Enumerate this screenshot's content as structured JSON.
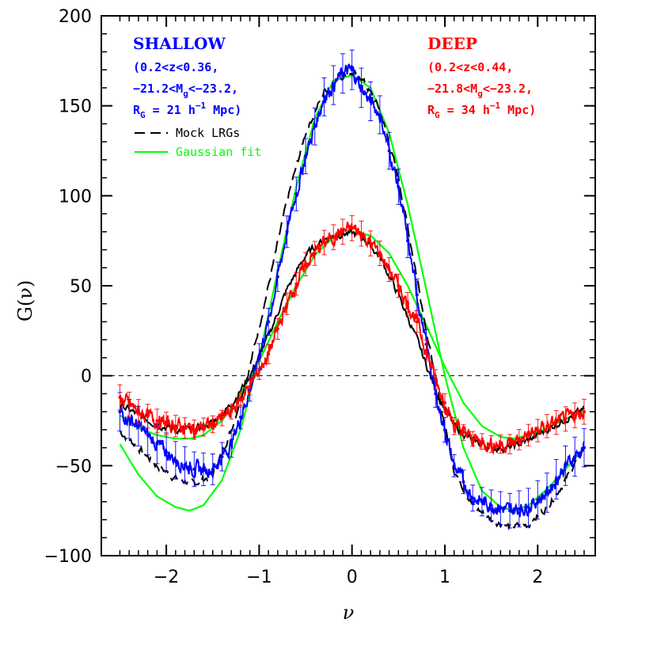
{
  "chart_data": {
    "type": "line",
    "xlabel": "ν",
    "ylabel": "G(ν)",
    "xlim": [
      -2.7,
      2.62
    ],
    "ylim": [
      -100,
      200
    ],
    "x_ticks": [
      -2,
      -1,
      0,
      1,
      2
    ],
    "x_tick_labels": [
      "−2",
      "−1",
      "0",
      "1",
      "2"
    ],
    "y_ticks": [
      -100,
      -50,
      0,
      50,
      100,
      150,
      200
    ],
    "y_tick_labels": [
      "−100",
      "−50",
      "0",
      "50",
      "100",
      "150",
      "200"
    ],
    "zero_line": true,
    "colors": {
      "shallow": "#0000ff",
      "deep": "#ff0000",
      "mock": "#000000",
      "gaussian": "#00ff00"
    },
    "annotations": {
      "shallow": {
        "title": "SHALLOW",
        "line1": "(0.2<z<0.36,",
        "line2_pre": "−21.2<M",
        "line2_sub": "g",
        "line2_post": "<−23.2,",
        "line3_pre": "R",
        "line3_sub": "G",
        "line3_mid": " = 21 h",
        "line3_sup": "−1",
        "line3_post": " Mpc)"
      },
      "deep": {
        "title": "DEEP",
        "line1": "(0.2<z<0.44,",
        "line2_pre": "−21.8<M",
        "line2_sub": "g",
        "line2_post": "<−23.2,",
        "line3_pre": "R",
        "line3_sub": "G",
        "line3_mid": " = 34 h",
        "line3_sup": "−1",
        "line3_post": " Mpc)"
      }
    },
    "legend": [
      {
        "label": "Mock LRGs",
        "style": "dashed",
        "color": "#000000"
      },
      {
        "label": "Gaussian fit",
        "style": "solid",
        "color": "#00ff00"
      }
    ],
    "series": [
      {
        "name": "SHALLOW",
        "color": "#0000ff",
        "style": "noisy",
        "x": [
          -2.5,
          -2.3,
          -2.1,
          -1.9,
          -1.7,
          -1.5,
          -1.3,
          -1.1,
          -0.9,
          -0.7,
          -0.5,
          -0.3,
          -0.1,
          0.0,
          0.1,
          0.3,
          0.5,
          0.7,
          0.9,
          1.1,
          1.3,
          1.5,
          1.7,
          1.9,
          2.1,
          2.3,
          2.5
        ],
        "y": [
          -20,
          -28,
          -38,
          -47,
          -52,
          -52,
          -38,
          -8,
          30,
          80,
          122,
          155,
          168,
          170,
          160,
          145,
          105,
          45,
          -10,
          -50,
          -68,
          -72,
          -75,
          -73,
          -65,
          -50,
          -40
        ]
      },
      {
        "name": "DEEP",
        "color": "#ff0000",
        "style": "noisy",
        "x": [
          -2.5,
          -2.3,
          -2.1,
          -1.9,
          -1.7,
          -1.5,
          -1.3,
          -1.1,
          -0.9,
          -0.7,
          -0.5,
          -0.3,
          -0.1,
          0.0,
          0.1,
          0.3,
          0.5,
          0.7,
          0.9,
          1.1,
          1.3,
          1.5,
          1.7,
          1.9,
          2.1,
          2.3,
          2.5
        ],
        "y": [
          -12,
          -20,
          -25,
          -28,
          -30,
          -27,
          -20,
          -6,
          12,
          40,
          62,
          74,
          80,
          82,
          79,
          68,
          50,
          30,
          -2,
          -28,
          -35,
          -38,
          -38,
          -33,
          -28,
          -24,
          -20
        ]
      },
      {
        "name": "Mock shallow",
        "color": "#000000",
        "style": "dashed",
        "x": [
          -2.5,
          -2.3,
          -2.1,
          -1.9,
          -1.7,
          -1.5,
          -1.3,
          -1.1,
          -0.9,
          -0.7,
          -0.5,
          -0.3,
          -0.1,
          0.0,
          0.1,
          0.3,
          0.5,
          0.7,
          0.9,
          1.1,
          1.3,
          1.5,
          1.7,
          1.9,
          2.1,
          2.3,
          2.5
        ],
        "y": [
          -31,
          -40,
          -50,
          -57,
          -60,
          -55,
          -30,
          5,
          50,
          97,
          135,
          158,
          167,
          168,
          166,
          148,
          110,
          55,
          -3,
          -52,
          -72,
          -80,
          -84,
          -83,
          -73,
          -58,
          -40
        ]
      },
      {
        "name": "Mock deep",
        "color": "#000000",
        "style": "solid",
        "x": [
          -2.5,
          -2.3,
          -2.1,
          -1.9,
          -1.7,
          -1.5,
          -1.3,
          -1.1,
          -0.9,
          -0.7,
          -0.5,
          -0.3,
          -0.1,
          0.0,
          0.1,
          0.3,
          0.5,
          0.7,
          0.9,
          1.1,
          1.3,
          1.5,
          1.7,
          1.9,
          2.1,
          2.3,
          2.5
        ],
        "y": [
          -16,
          -22,
          -27,
          -30,
          -30,
          -26,
          -16,
          0,
          22,
          48,
          67,
          76,
          79,
          79,
          78,
          66,
          45,
          20,
          -8,
          -28,
          -36,
          -40,
          -40,
          -36,
          -30,
          -24,
          -19
        ]
      },
      {
        "name": "Gaussian shallow",
        "color": "#00ff00",
        "style": "smooth",
        "x": [
          -2.5,
          -2.3,
          -2.1,
          -1.9,
          -1.75,
          -1.6,
          -1.4,
          -1.2,
          -1.0,
          -0.8,
          -0.6,
          -0.4,
          -0.2,
          0.0,
          0.2,
          0.4,
          0.6,
          0.8,
          1.0,
          1.2,
          1.4,
          1.6,
          1.75,
          1.9,
          2.1,
          2.3,
          2.5
        ],
        "y": [
          -38,
          -55,
          -67,
          -73,
          -75,
          -72,
          -58,
          -30,
          10,
          58,
          105,
          143,
          164,
          167,
          160,
          135,
          95,
          48,
          0,
          -40,
          -64,
          -73,
          -75,
          -72,
          -63,
          -52,
          -40
        ]
      },
      {
        "name": "Gaussian deep",
        "color": "#00ff00",
        "style": "smooth",
        "x": [
          -2.5,
          -2.3,
          -2.1,
          -1.9,
          -1.75,
          -1.6,
          -1.4,
          -1.2,
          -1.0,
          -0.8,
          -0.6,
          -0.4,
          -0.2,
          0.0,
          0.2,
          0.4,
          0.6,
          0.8,
          1.0,
          1.2,
          1.4,
          1.6,
          1.75,
          1.9,
          2.1,
          2.3,
          2.5
        ],
        "y": [
          -22,
          -29,
          -33,
          -35,
          -35,
          -33,
          -25,
          -10,
          8,
          30,
          50,
          67,
          77,
          80,
          78,
          68,
          50,
          28,
          5,
          -15,
          -28,
          -34,
          -35,
          -33,
          -29,
          -24,
          -20
        ]
      }
    ]
  }
}
